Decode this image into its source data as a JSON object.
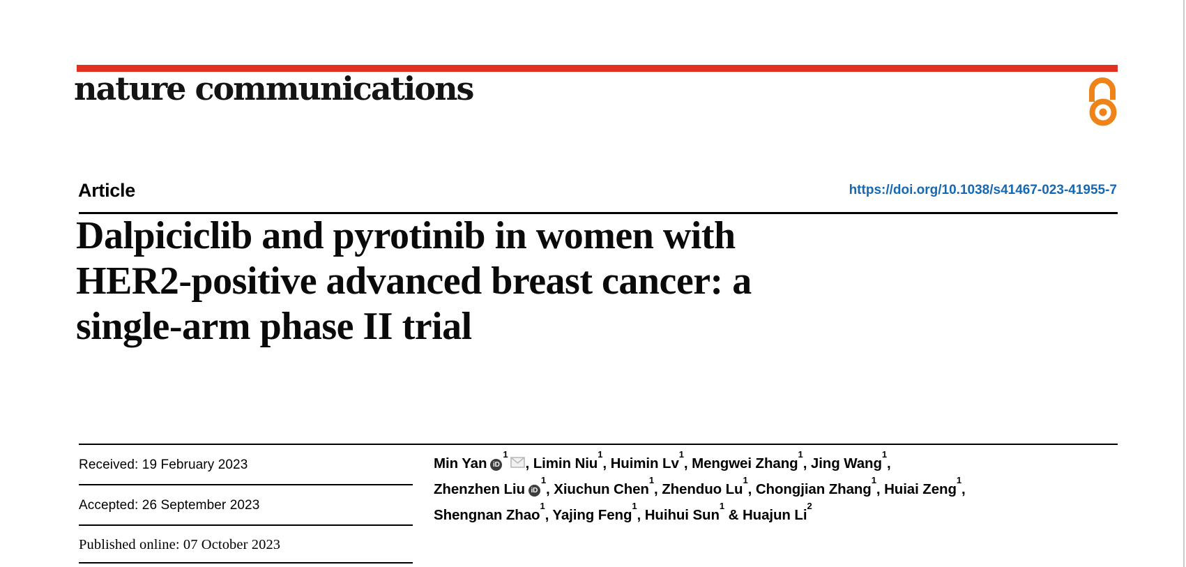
{
  "colors": {
    "brand_red": "#e23122",
    "open_access_orange": "#ee8419",
    "doi_blue": "#1569b3",
    "rule_black": "#000000",
    "page_edge_gray": "#cccccc",
    "orcid_badge_dark": "#3d3d3d",
    "mail_gray": "#b9b9b9"
  },
  "masthead": {
    "logo_text": "nature communications",
    "open_access_icon": "open-lock-icon"
  },
  "article_header": {
    "label": "Article",
    "doi": "https://doi.org/10.1038/s41467-023-41955-7"
  },
  "title": {
    "lines": [
      "Dalpiciclib and pyrotinib in women with",
      "HER2-positive advanced breast cancer: a",
      "single-arm phase II trial"
    ]
  },
  "dates": {
    "rows": [
      {
        "label": "Received:",
        "value": "19 February 2023"
      },
      {
        "label": "Accepted:",
        "value": "26 September 2023"
      },
      {
        "label": "Published online:",
        "value": "07 October 2023"
      }
    ]
  },
  "icons": {
    "orcid_text": "iD"
  },
  "authors": {
    "lines": [
      {
        "trail": ",",
        "segments": [
          {
            "sep": "",
            "name": "Min Yan",
            "orcid": true,
            "sup": "1",
            "mail": true
          },
          {
            "sep": ", ",
            "name": "Limin Niu",
            "sup": "1"
          },
          {
            "sep": ", ",
            "name": "Huimin Lv",
            "sup": "1"
          },
          {
            "sep": ", ",
            "name": "Mengwei Zhang",
            "sup": "1"
          },
          {
            "sep": ", ",
            "name": "Jing Wang",
            "sup": "1"
          }
        ]
      },
      {
        "trail": ",",
        "segments": [
          {
            "sep": "",
            "name": "Zhenzhen Liu",
            "orcid": true,
            "sup": "1"
          },
          {
            "sep": ", ",
            "name": "Xiuchun Chen",
            "sup": "1"
          },
          {
            "sep": ", ",
            "name": "Zhenduo Lu",
            "sup": "1"
          },
          {
            "sep": ", ",
            "name": "Chongjian Zhang",
            "sup": "1"
          },
          {
            "sep": ", ",
            "name": "Huiai Zeng",
            "sup": "1"
          }
        ]
      },
      {
        "trail": "",
        "segments": [
          {
            "sep": "",
            "name": "Shengnan Zhao",
            "sup": "1"
          },
          {
            "sep": ", ",
            "name": "Yajing Feng",
            "sup": "1"
          },
          {
            "sep": ", ",
            "name": "Huihui Sun",
            "sup": "1"
          },
          {
            "sep": " & ",
            "name": "Huajun Li",
            "sup": "2"
          }
        ]
      }
    ]
  }
}
